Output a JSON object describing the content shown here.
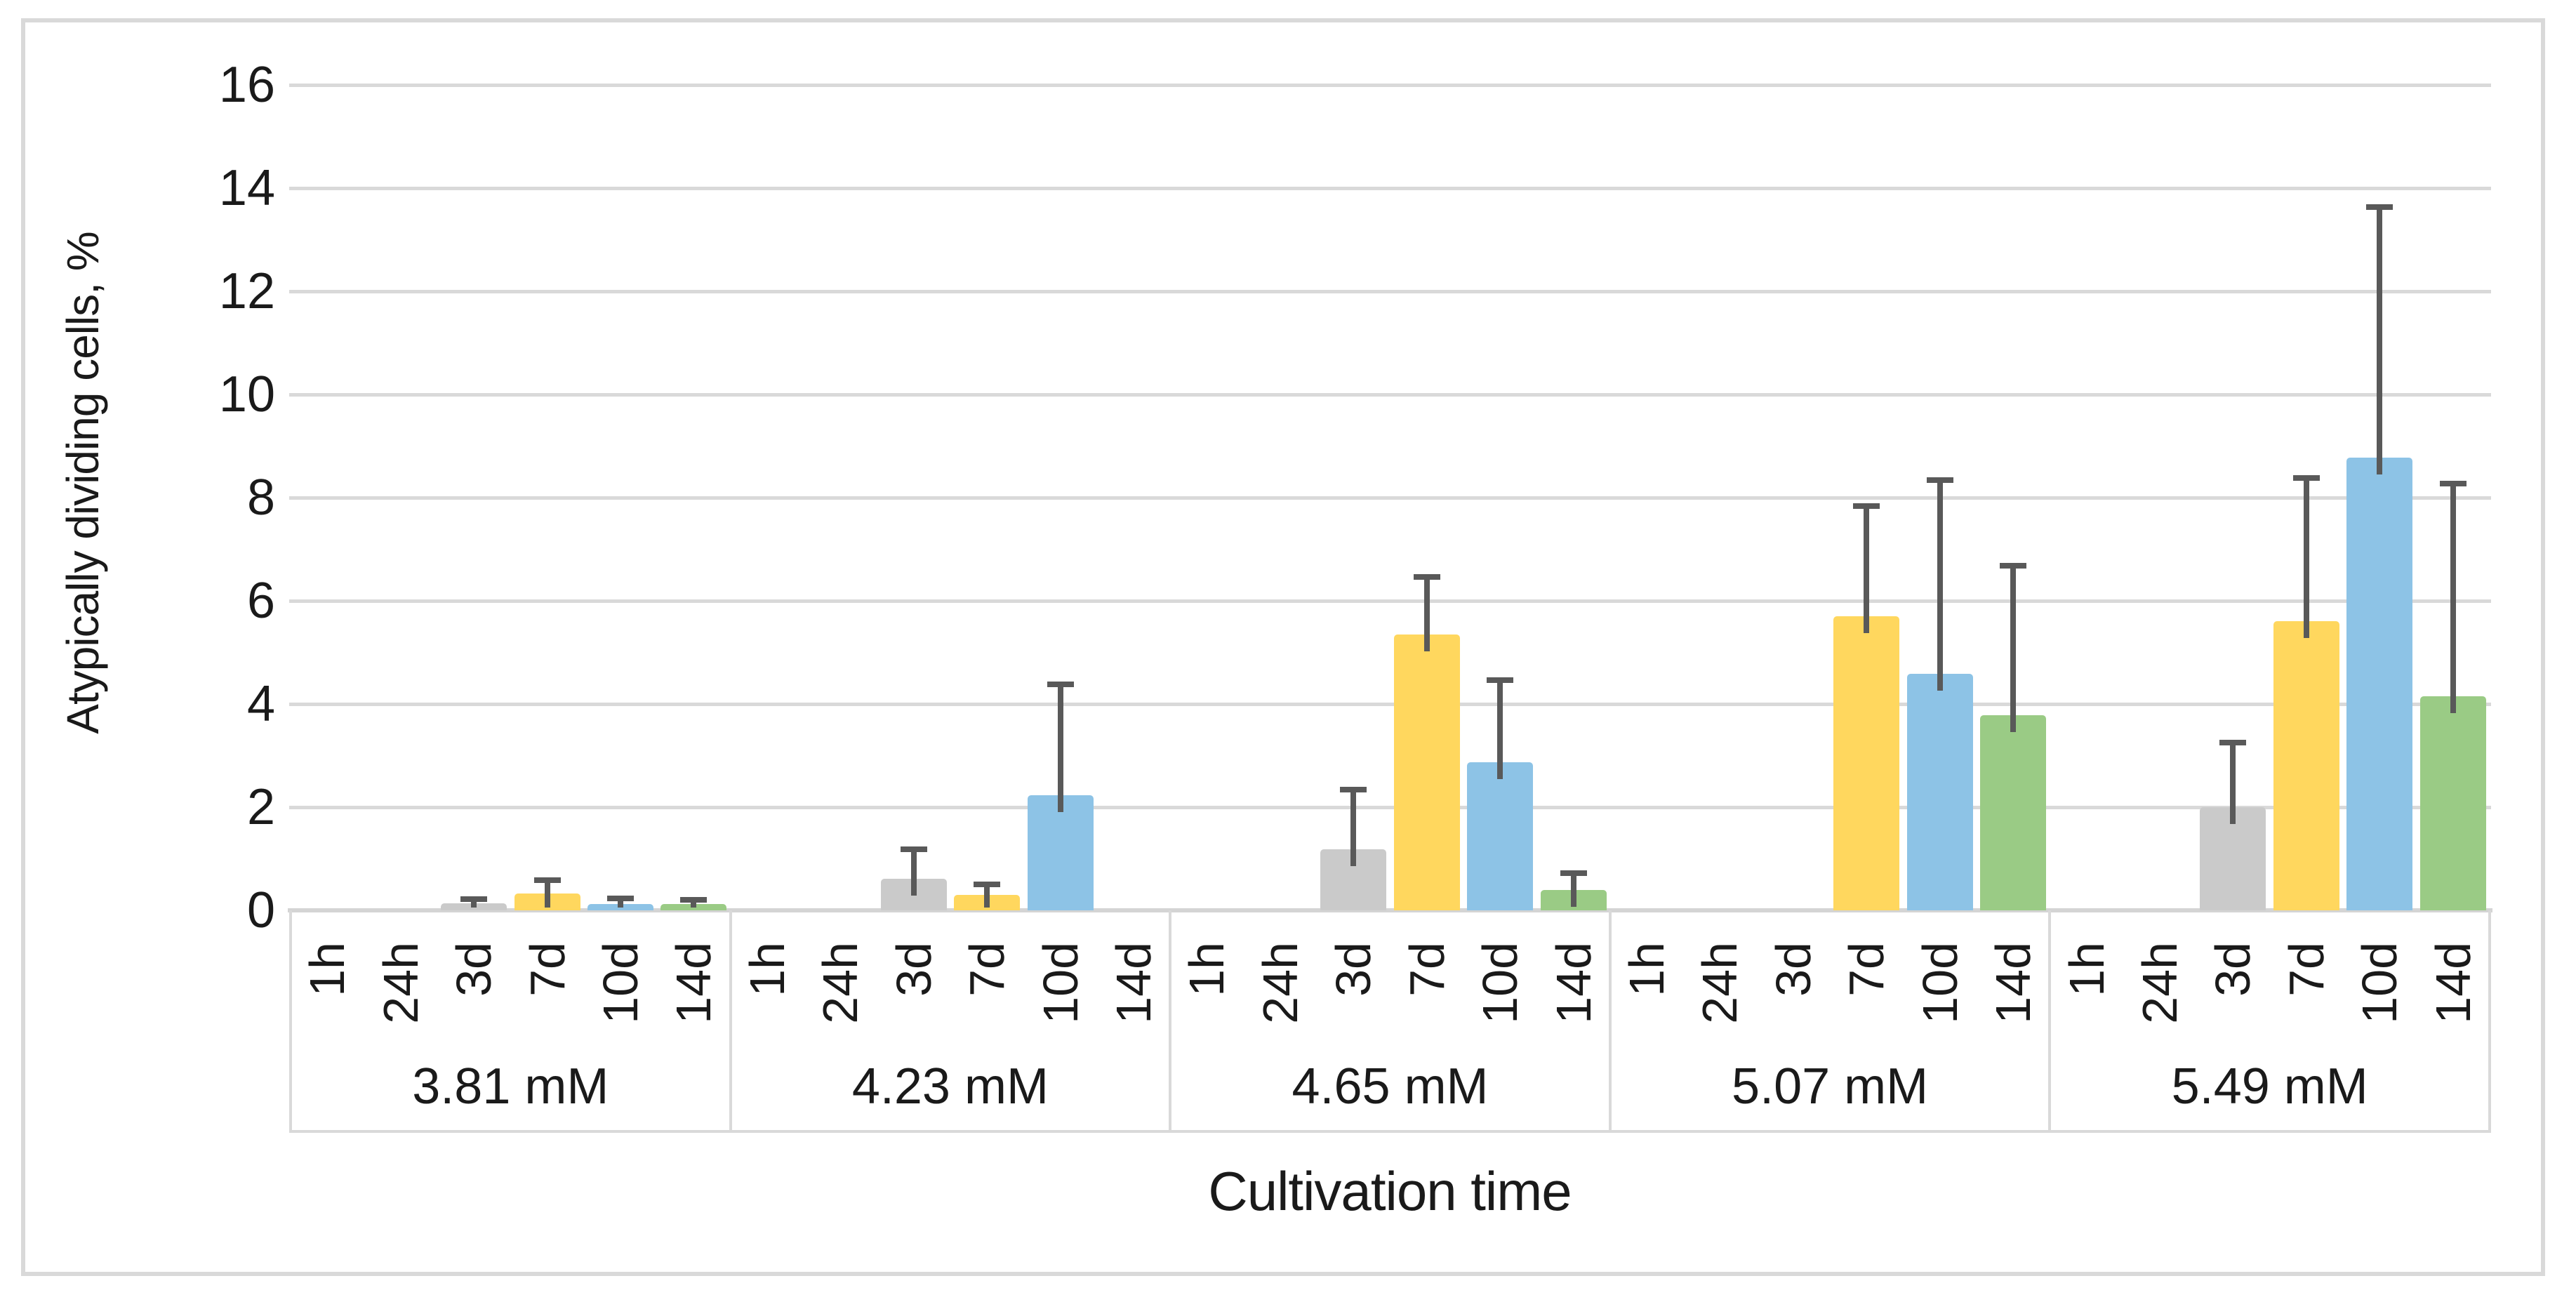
{
  "figure": {
    "background_color": "#FFFFFF",
    "border_color": "#D9D9D9"
  },
  "chart_data": {
    "type": "bar",
    "title": "",
    "ylabel": "Atypically dividing cells, %",
    "xlabel": "Cultivation time",
    "ylim": [
      0,
      16
    ],
    "yticks": [
      0,
      2,
      4,
      6,
      8,
      10,
      12,
      14,
      16
    ],
    "grid": "horizontal-on",
    "legend_position": "none",
    "gridline_color": "#D9D9D9",
    "error_bar_color": "#595959",
    "text_color": "#1A1A1A",
    "categories": [
      "1h",
      "24h",
      "3d",
      "7d",
      "10d",
      "14d"
    ],
    "category_colors": [
      null,
      null,
      "#CACACA",
      "#FFD75E",
      "#8DC3E6",
      "#9ACB85"
    ],
    "groups": [
      {
        "label": "3.81 mM",
        "values": [
          0,
          0,
          0.14,
          0.33,
          0.12,
          0.12
        ],
        "error_top": [
          null,
          null,
          0.23,
          0.6,
          0.25,
          0.22
        ]
      },
      {
        "label": "4.23 mM",
        "values": [
          0,
          0,
          0.61,
          0.3,
          2.23,
          0
        ],
        "error_top": [
          null,
          null,
          1.2,
          0.52,
          4.4,
          null
        ]
      },
      {
        "label": "4.65 mM",
        "values": [
          0,
          0,
          1.19,
          5.35,
          2.87,
          0.39
        ],
        "error_top": [
          null,
          null,
          2.35,
          6.48,
          4.48,
          0.73
        ]
      },
      {
        "label": "5.07 mM",
        "values": [
          0,
          0,
          0,
          5.7,
          4.58,
          3.78
        ],
        "error_top": [
          null,
          null,
          null,
          7.85,
          8.35,
          6.7
        ]
      },
      {
        "label": "5.49 mM",
        "values": [
          0,
          0,
          2.0,
          5.6,
          8.77,
          4.15
        ],
        "error_top": [
          null,
          null,
          3.27,
          8.4,
          13.65,
          8.28
        ]
      }
    ]
  }
}
